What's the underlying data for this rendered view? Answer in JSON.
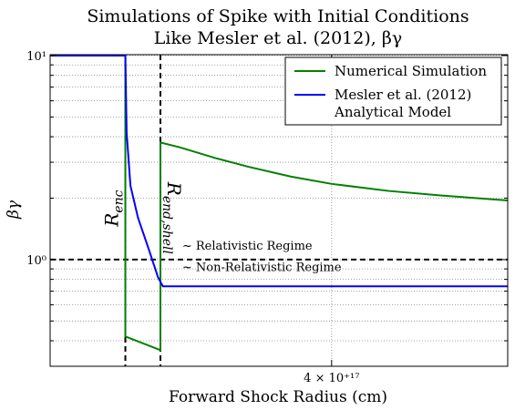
{
  "chart_data": {
    "type": "line",
    "title_line1": "Simulations of Spike with Initial Conditions",
    "title_line2": "Like Mesler et al. (2012), βγ",
    "xlabel": "Forward Shock Radius (cm)",
    "ylabel": "βγ",
    "xscale": "log",
    "yscale": "log",
    "xlim": [
      2.8e+17,
      5e+17
    ],
    "ylim": [
      0.3,
      10.1
    ],
    "grid": true,
    "legend_position": "top-right",
    "yticks": [
      {
        "value": 1,
        "label": "10⁰"
      },
      {
        "value": 10,
        "label": "10¹"
      }
    ],
    "xticks": [
      {
        "value": 4e+17,
        "label": "4 × 10⁺¹⁷"
      }
    ],
    "series": [
      {
        "name": "Numerical Simulation",
        "color": "#008000",
        "x": [
          2.8e+17,
          3.08e+17,
          3.08e+17,
          3.22e+17,
          3.22e+17,
          3.3e+17,
          3.45e+17,
          3.6e+17,
          3.8e+17,
          4e+17,
          4.3e+17,
          4.6e+17,
          5e+17
        ],
        "y": [
          10.0,
          10.0,
          0.42,
          0.36,
          3.75,
          3.55,
          3.15,
          2.85,
          2.55,
          2.35,
          2.17,
          2.06,
          1.95
        ]
      },
      {
        "name": "Mesler et al. (2012)\nAnalytical Model",
        "legend_lines": [
          "Mesler et al. (2012)",
          "Analytical Model"
        ],
        "color": "#0000ff",
        "x": [
          2.8e+17,
          3.08e+17,
          3.085e+17,
          3.1e+17,
          3.13e+17,
          3.17e+17,
          3.21e+17,
          3.23e+17,
          3.5e+17,
          4e+17,
          5e+17
        ],
        "y": [
          10.0,
          10.0,
          4.2,
          2.3,
          1.6,
          1.15,
          0.82,
          0.74,
          0.74,
          0.74,
          0.74
        ]
      }
    ],
    "reference_lines": [
      {
        "orientation": "horizontal",
        "value": 1,
        "style": "dashed",
        "color": "#000000"
      },
      {
        "orientation": "vertical",
        "value": 3.08e+17,
        "style": "dashed",
        "color": "#000000",
        "label": "R_enc"
      },
      {
        "orientation": "vertical",
        "value": 3.22e+17,
        "style": "dashed",
        "color": "#000000",
        "label": "R_end,shell"
      }
    ],
    "annotations": [
      {
        "text": "~ Relativistic Regime",
        "x": 3.31e+17,
        "y": 1.12
      },
      {
        "text": "~ Non-Relativistic Regime",
        "x": 3.31e+17,
        "y": 0.88
      }
    ]
  }
}
